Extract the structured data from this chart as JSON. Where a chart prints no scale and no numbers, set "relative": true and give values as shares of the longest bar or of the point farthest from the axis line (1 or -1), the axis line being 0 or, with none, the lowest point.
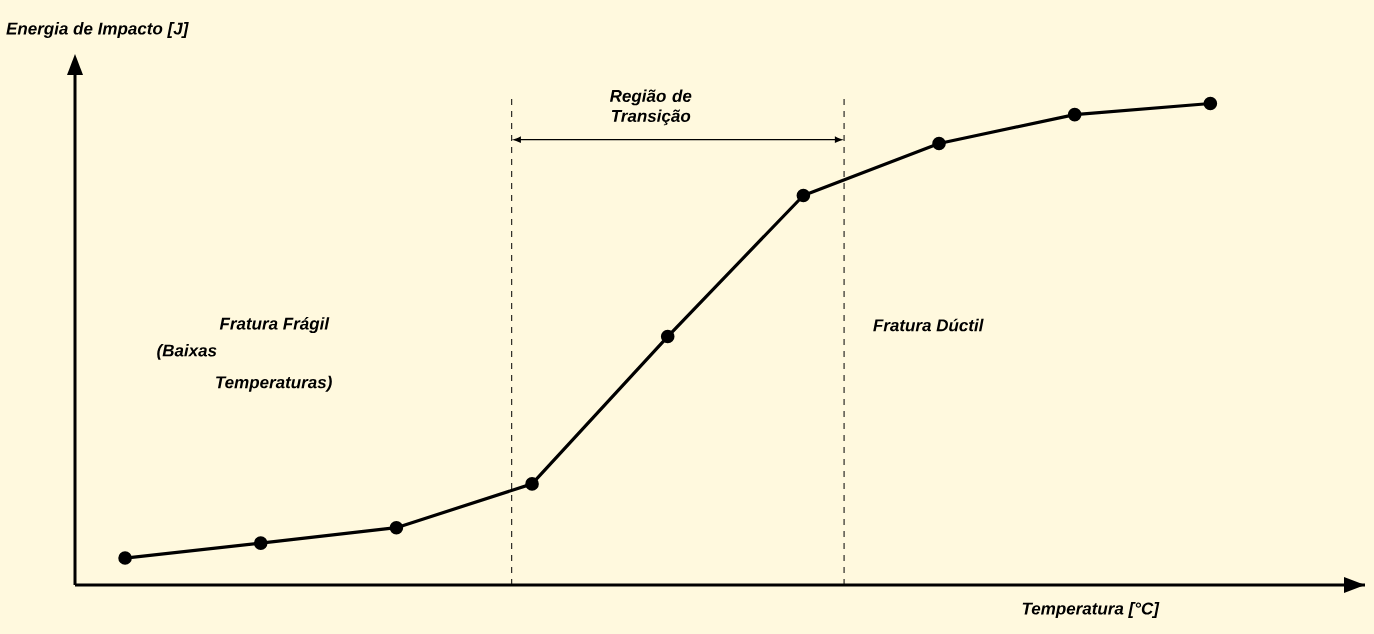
{
  "chart_data": {
    "type": "line",
    "relative": true,
    "xlabel": "Temperatura [°C]",
    "ylabel": "Energia de Impacto [J]",
    "tick_labels": false,
    "marker": "circle",
    "color": "#000000",
    "categories": [
      null,
      null,
      null,
      null,
      null,
      null,
      null,
      null,
      null
    ],
    "values": [
      0.056,
      0.087,
      0.119,
      0.21,
      0.516,
      0.809,
      0.917,
      0.977,
      1
    ],
    "annotations": [
      "Região de Transição",
      "Fratura Frágil",
      "(Baixas",
      "Temperaturas)",
      "Fratura Dúctil"
    ]
  }
}
